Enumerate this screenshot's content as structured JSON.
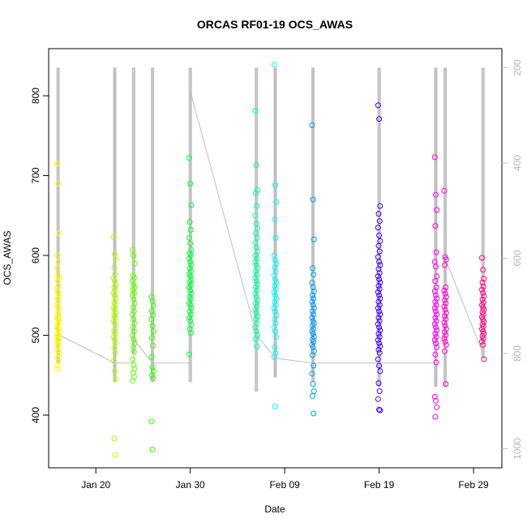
{
  "chart_data": {
    "type": "scatter",
    "title": "ORCAS RF01-19 OCS_AWAS",
    "xlabel": "Date",
    "ylabel": "OCS_AWAS",
    "x_axis": {
      "min": "2016-01-15",
      "max": "2016-03-03",
      "ticks": [
        {
          "date": "2016-01-20",
          "label": "Jan 20"
        },
        {
          "date": "2016-01-30",
          "label": "Jan 30"
        },
        {
          "date": "2016-02-09",
          "label": "Feb 09"
        },
        {
          "date": "2016-02-19",
          "label": "Feb 19"
        },
        {
          "date": "2016-02-29",
          "label": "Feb 29"
        }
      ]
    },
    "y_axis": {
      "min": 334,
      "max": 859,
      "ticks": [
        400,
        500,
        600,
        700,
        800
      ]
    },
    "y2_axis": {
      "min": 1040,
      "max": 160,
      "reversed": true,
      "ticks": [
        200,
        400,
        600,
        800,
        1000
      ]
    },
    "pressure_color": "#bebebe",
    "flights": [
      {
        "date": "2016-01-16",
        "color": "#ffff00",
        "top": 200,
        "pressure_bottom": 820,
        "values": [
          715,
          690,
          628,
          600,
          592,
          584,
          575,
          572,
          568,
          562,
          558,
          554,
          550,
          546,
          542,
          538,
          535,
          532,
          528,
          525,
          522,
          520,
          518,
          515,
          512,
          510,
          508,
          505,
          502,
          500,
          498,
          495,
          493,
          490,
          487,
          484,
          480,
          476,
          472,
          468,
          462,
          458
        ]
      },
      {
        "date": "2016-01-22",
        "color": "#b3ff00",
        "top": 200,
        "pressure_bottom": 860,
        "values": [
          623,
          602,
          595,
          585,
          577,
          572,
          568,
          563,
          560,
          557,
          553,
          550,
          546,
          542,
          538,
          535,
          532,
          528,
          525,
          522,
          518,
          515,
          510,
          505,
          502,
          498,
          494,
          490,
          484,
          478,
          468,
          455,
          445,
          371,
          350
        ]
      },
      {
        "date": "2016-01-24",
        "color": "#66ff00",
        "top": 200,
        "pressure_bottom": 800,
        "values": [
          607,
          600,
          590,
          575,
          572,
          568,
          563,
          560,
          557,
          553,
          550,
          545,
          540,
          535,
          530,
          526,
          520,
          515,
          510,
          505,
          500,
          495,
          490,
          485,
          479,
          470,
          463,
          458,
          453,
          448,
          443
        ]
      },
      {
        "date": "2016-01-26",
        "color": "#33ff00",
        "top": 200,
        "pressure_bottom": 860,
        "values": [
          548,
          543,
          537,
          530,
          525,
          520,
          512,
          505,
          497,
          487,
          473,
          460,
          455,
          450,
          446,
          392,
          357
        ]
      },
      {
        "date": "2016-01-30",
        "color": "#00ff33",
        "top": 200,
        "pressure_bottom": 860,
        "values": [
          722,
          690,
          663,
          642,
          632,
          622,
          615,
          607,
          603,
          600,
          596,
          592,
          588,
          584,
          580,
          577,
          574,
          570,
          567,
          563,
          560,
          556,
          552,
          548,
          545,
          541,
          538,
          534,
          530,
          526,
          522,
          518,
          513,
          508,
          503,
          476
        ]
      },
      {
        "date": "2016-02-06",
        "color": "#00ff99",
        "top": 200,
        "pressure_bottom": 880,
        "values": [
          781,
          713,
          682,
          678,
          662,
          650,
          640,
          634,
          628,
          622,
          616,
          610,
          605,
          600,
          596,
          592,
          588,
          584,
          580,
          576,
          572,
          568,
          564,
          560,
          556,
          552,
          548,
          544,
          540,
          536,
          532,
          528,
          524,
          520,
          515,
          510,
          505,
          500,
          495,
          486
        ]
      },
      {
        "date": "2016-02-08",
        "color": "#00ffff",
        "top": 200,
        "pressure_bottom": 850,
        "values": [
          839,
          688,
          667,
          645,
          622,
          600,
          594,
          590,
          585,
          580,
          575,
          570,
          566,
          562,
          558,
          554,
          550,
          546,
          542,
          538,
          534,
          530,
          525,
          520,
          515,
          510,
          505,
          498,
          485,
          478,
          473,
          411
        ]
      },
      {
        "date": "2016-02-12",
        "color": "#0099ff",
        "top": 200,
        "pressure_bottom": 860,
        "values": [
          763,
          670,
          620,
          584,
          576,
          566,
          560,
          555,
          550,
          546,
          542,
          538,
          534,
          530,
          526,
          522,
          518,
          515,
          512,
          508,
          505,
          502,
          498,
          495,
          492,
          488,
          485,
          480,
          475,
          462,
          452,
          439,
          430,
          424,
          402
        ]
      },
      {
        "date": "2016-02-19",
        "color": "#4000ff",
        "top": 200,
        "pressure_bottom": 870,
        "values": [
          788,
          771,
          662,
          652,
          643,
          635,
          625,
          618,
          612,
          605,
          598,
          592,
          588,
          583,
          578,
          574,
          570,
          566,
          562,
          558,
          554,
          550,
          546,
          542,
          538,
          534,
          530,
          526,
          522,
          518,
          514,
          510,
          506,
          502,
          498,
          494,
          490,
          486,
          482,
          478,
          470,
          462,
          455,
          440,
          430,
          420,
          407,
          406
        ]
      },
      {
        "date": "2016-02-25",
        "color": "#ff00ff",
        "top": 200,
        "pressure_bottom": 870,
        "values": [
          723,
          676,
          657,
          637,
          604,
          592,
          586,
          574,
          568,
          560,
          555,
          550,
          546,
          542,
          538,
          534,
          530,
          526,
          522,
          518,
          514,
          510,
          506,
          502,
          498,
          494,
          490,
          485,
          476,
          466,
          423,
          418,
          410,
          398
        ]
      },
      {
        "date": "2016-02-26",
        "color": "#ff00cc",
        "top": 200,
        "pressure_bottom": 870,
        "values": [
          681,
          598,
          595,
          588,
          560,
          556,
          552,
          548,
          544,
          540,
          536,
          532,
          528,
          524,
          520,
          516,
          512,
          508,
          504,
          500,
          496,
          492,
          488,
          480,
          439
        ]
      },
      {
        "date": "2016-03-01",
        "color": "#ff0080",
        "top": 200,
        "pressure_bottom": 810,
        "values": [
          597,
          582,
          571,
          566,
          561,
          557,
          553,
          549,
          545,
          541,
          538,
          535,
          532,
          529,
          526,
          523,
          520,
          517,
          514,
          511,
          508,
          505,
          502,
          499,
          496,
          492,
          488,
          470
        ]
      }
    ],
    "pressure_path": [
      {
        "date": "2016-01-16",
        "p": 760
      },
      {
        "date": "2016-01-22",
        "p": 820
      },
      {
        "date": "2016-01-24",
        "p": 820
      },
      {
        "date": "2016-01-24",
        "p": 770
      },
      {
        "date": "2016-01-26",
        "p": 820
      },
      {
        "date": "2016-01-30",
        "p": 820
      },
      {
        "date": "2016-01-30",
        "p": 250
      },
      {
        "date": "2016-02-06",
        "p": 760
      },
      {
        "date": "2016-02-08",
        "p": 810
      },
      {
        "date": "2016-02-12",
        "p": 820
      },
      {
        "date": "2016-02-19",
        "p": 820
      },
      {
        "date": "2016-02-25",
        "p": 820
      },
      {
        "date": "2016-02-25",
        "p": 790
      },
      {
        "date": "2016-02-26",
        "p": 760
      },
      {
        "date": "2016-02-26",
        "p": 600
      },
      {
        "date": "2016-03-01",
        "p": 800
      }
    ]
  }
}
